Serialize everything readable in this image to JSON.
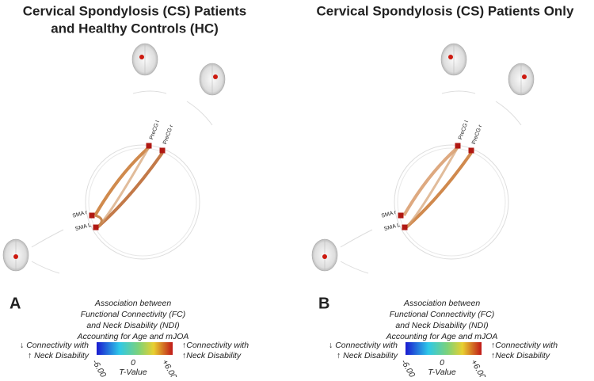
{
  "panels": [
    {
      "letter": "A",
      "title_lines": [
        "Cervical Spondylosis (CS) Patients",
        "and Healthy Controls (HC)"
      ],
      "nodes": [
        "PreCG l",
        "PreCG r",
        "SMA r",
        "SMA L"
      ],
      "legend": {
        "caption_lines": [
          "Association between",
          "Functional Connectivity (FC)",
          "and Neck Disability (NDI)",
          "Accounting for Age and mJOA"
        ],
        "left_lines": [
          "↓ Connectivity with",
          "↑ Neck Disability"
        ],
        "right_lines": [
          "↑Connectivity with",
          "↑Neck Disability"
        ],
        "ticks": [
          "-6.00",
          "0",
          "+6.00"
        ],
        "axis_label": "T-Value"
      }
    },
    {
      "letter": "B",
      "title_lines": [
        "Cervical Spondylosis (CS) Patients Only"
      ],
      "nodes": [
        "PreCG l",
        "PreCG r",
        "SMA r",
        "SMA L"
      ],
      "legend": {
        "caption_lines": [
          "Association between",
          "Functional Connectivity (FC)",
          "and Neck Disability (NDI)",
          "Accounting for Age and mJOA"
        ],
        "left_lines": [
          "↓ Connectivity with",
          "↑ Neck Disability"
        ],
        "right_lines": [
          "↑Connectivity with",
          "↑Neck Disability"
        ],
        "ticks": [
          "-6.00",
          "0",
          "+6.00"
        ],
        "axis_label": "T-Value"
      }
    }
  ]
}
